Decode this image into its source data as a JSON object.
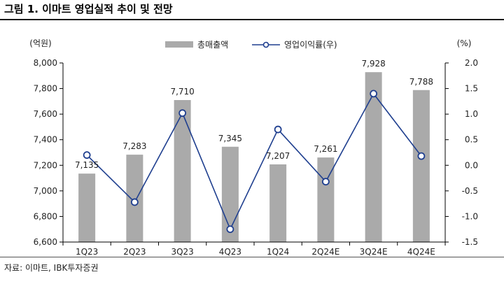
{
  "figure": {
    "title": "그림 1. 이마트 영업실적 추이 및 전망",
    "source": "자료: 이마트, IBK투자증권"
  },
  "colors": {
    "bar": "#aaaaaa",
    "line": "#1f3f8f",
    "marker_fill": "#ffffff",
    "axis": "#000000"
  },
  "chart_data": {
    "type": "bar+line",
    "categories": [
      "1Q23",
      "2Q23",
      "3Q23",
      "4Q23",
      "1Q24",
      "2Q24E",
      "3Q24E",
      "4Q24E"
    ],
    "series": [
      {
        "name": "총매출액",
        "type": "bar",
        "axis": "left",
        "values": [
          7135,
          7283,
          7710,
          7345,
          7207,
          7261,
          7928,
          7788
        ],
        "labels": [
          "7,135",
          "7,283",
          "7,710",
          "7,345",
          "7,207",
          "7,261",
          "7,928",
          "7,788"
        ]
      },
      {
        "name": "영업이익률(우)",
        "type": "line",
        "axis": "right",
        "values": [
          0.2,
          -0.72,
          1.02,
          -1.25,
          0.7,
          -0.32,
          1.4,
          0.18
        ]
      }
    ],
    "left_axis": {
      "unit_label": "(억원)",
      "range": [
        6600,
        8000
      ],
      "ticks": [
        8000,
        7800,
        7600,
        7400,
        7200,
        7000,
        6800,
        6600
      ],
      "tick_labels": [
        "8,000",
        "7,800",
        "7,600",
        "7,400",
        "7,200",
        "7,000",
        "6,800",
        "6,600"
      ]
    },
    "right_axis": {
      "unit_label": "(%)",
      "range": [
        -1.5,
        2.0
      ],
      "ticks": [
        2.0,
        1.5,
        1.0,
        0.5,
        0.0,
        -0.5,
        -1.0,
        -1.5
      ],
      "tick_labels": [
        "2.0",
        "1.5",
        "1.0",
        "0.5",
        "0.0",
        "-0.5",
        "-1.0",
        "-1.5"
      ]
    },
    "legend": {
      "position": "top-center",
      "items": [
        "총매출액",
        "영업이익률(우)"
      ]
    }
  }
}
